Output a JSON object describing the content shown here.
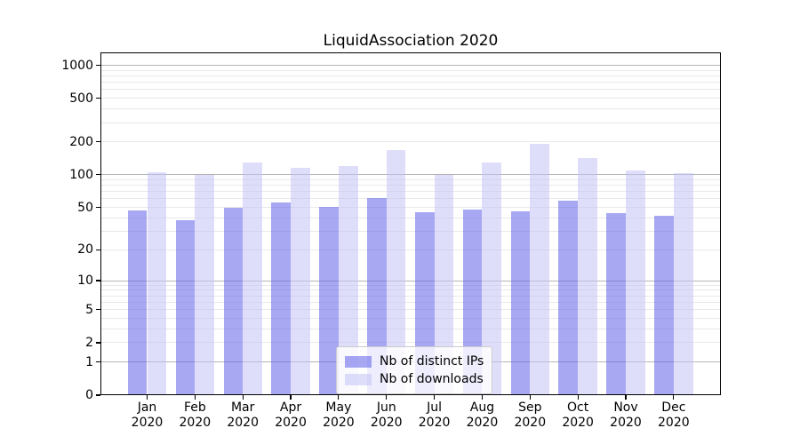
{
  "colors": {
    "ips_bar": "rgba(95,95,232,0.55)",
    "downloads_bar": "rgba(195,195,246,0.55)",
    "major_gridline": "#b5b5b5",
    "minor_gridline": "#e9e9e9",
    "axis_frame": "#000000",
    "background": "#ffffff",
    "text": "#000000"
  },
  "chart_data": {
    "type": "bar",
    "title": "LiquidAssociation 2020",
    "categories": [
      "Jan",
      "Feb",
      "Mar",
      "Apr",
      "May",
      "Jun",
      "Jul",
      "Aug",
      "Sep",
      "Oct",
      "Nov",
      "Dec"
    ],
    "category_year": "2020",
    "series": [
      {
        "name": "Nb of distinct IPs",
        "color_key": "ips_bar",
        "values": [
          47,
          38,
          50,
          56,
          51,
          61,
          45,
          48,
          46,
          58,
          44,
          42
        ]
      },
      {
        "name": "Nb of downloads",
        "color_key": "downloads_bar",
        "values": [
          106,
          100,
          130,
          116,
          120,
          170,
          100,
          129,
          192,
          142,
          110,
          103
        ]
      }
    ],
    "y_scale": "log1p",
    "ylim": [
      0,
      1310
    ],
    "y_ticks": [
      0,
      1,
      2,
      5,
      10,
      20,
      50,
      100,
      200,
      500,
      1000
    ],
    "y_major_gridlines": [
      1,
      10,
      100,
      1000
    ],
    "y_minor_gridlines": [
      2,
      3,
      4,
      5,
      6,
      7,
      8,
      9,
      20,
      30,
      40,
      50,
      60,
      70,
      80,
      90,
      200,
      300,
      400,
      500,
      600,
      700,
      800,
      900
    ],
    "grid": "horizontal",
    "legend_position": "lower center"
  }
}
